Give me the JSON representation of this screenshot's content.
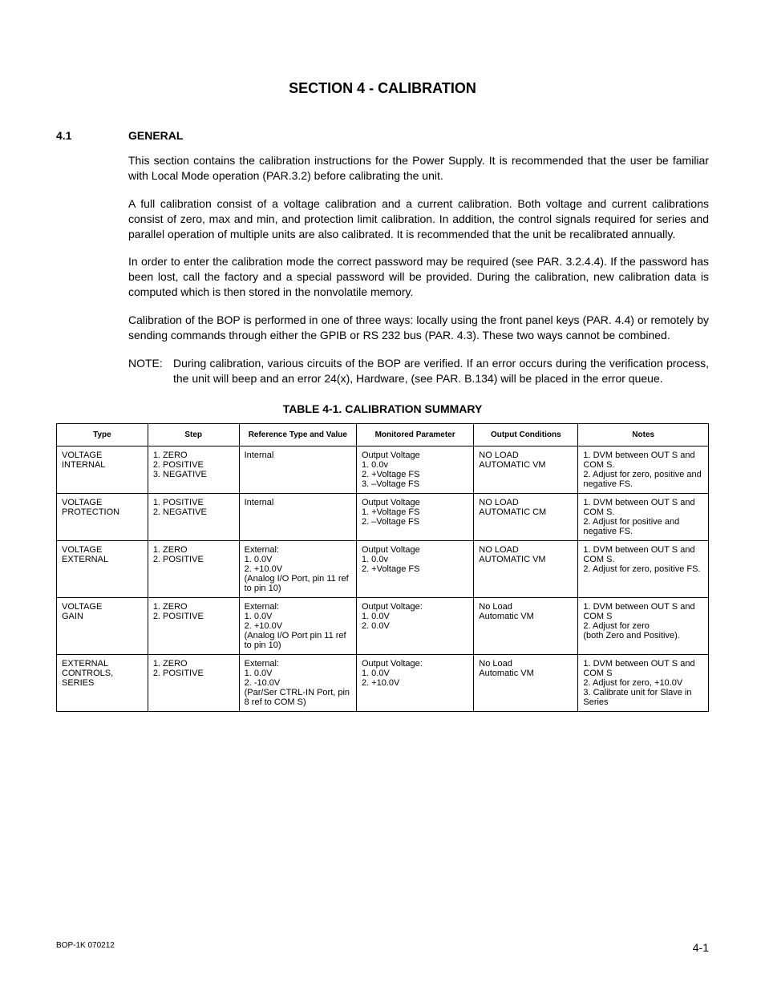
{
  "section_title": "SECTION 4 - CALIBRATION",
  "heading": {
    "num": "4.1",
    "text": "GENERAL"
  },
  "paragraphs": [
    "This section contains the calibration instructions for the Power Supply. It is recommended that the user be familiar with Local Mode operation (PAR.3.2) before calibrating the unit.",
    "A full calibration consist of a voltage calibration and a current calibration. Both voltage and current calibrations consist of zero, max and min, and protection limit calibration. In addition, the control signals required for series and parallel operation of multiple units are also calibrated. It is recommended that the unit be recalibrated annually.",
    "In order to enter the calibration mode the correct password may be required (see PAR. 3.2.4.4). If the password has been lost, call the factory and a special password will be provided. During the calibration, new calibration data is computed which is then stored in the nonvolatile memory.",
    "Calibration of the BOP is performed in one of three ways: locally using the front panel keys (PAR. 4.4) or remotely by sending commands through either the GPIB or RS 232 bus (PAR. 4.3). These two ways cannot be combined."
  ],
  "note": {
    "label": "NOTE:",
    "text": "During calibration, various circuits of the BOP are verified. If an error occurs during the verification process, the unit will beep and an error 24(x), Hardware, (see PAR. B.134) will be placed in the error queue."
  },
  "table": {
    "title": "TABLE 4-1.  CALIBRATION SUMMARY",
    "headers": [
      "Type",
      "Step",
      "Reference Type and Value",
      "Monitored Parameter",
      "Output Conditions",
      "Notes"
    ],
    "rows": [
      {
        "type": [
          "VOLTAGE",
          "INTERNAL"
        ],
        "step": [
          "1. ZERO",
          "2. POSITIVE",
          "3. NEGATIVE"
        ],
        "ref": [
          "Internal"
        ],
        "mon": [
          "Output Voltage",
          "1. 0.0v",
          "2. +Voltage FS",
          "3. –Voltage FS"
        ],
        "out": [
          "NO LOAD",
          "AUTOMATIC VM"
        ],
        "notes": [
          "1. DVM between OUT S and COM S.",
          "2. Adjust for zero, positive and negative FS."
        ]
      },
      {
        "type": [
          "VOLTAGE",
          "PROTECTION"
        ],
        "step": [
          "1. POSITIVE",
          "2. NEGATIVE"
        ],
        "ref": [
          "Internal"
        ],
        "mon": [
          "Output Voltage",
          "1. +Voltage FS",
          "2. –Voltage FS"
        ],
        "out": [
          "NO LOAD",
          "AUTOMATIC CM"
        ],
        "notes": [
          "1. DVM between OUT S and COM S.",
          "2. Adjust for positive and negative FS."
        ]
      },
      {
        "type": [
          "VOLTAGE",
          "EXTERNAL"
        ],
        "step": [
          "1. ZERO",
          "2. POSITIVE"
        ],
        "ref": [
          "External:",
          "1. 0.0V",
          "2. +10.0V",
          "(Analog I/O Port, pin 11 ref to pin 10)"
        ],
        "mon": [
          "Output Voltage",
          "1. 0.0v",
          "2. +Voltage FS"
        ],
        "out": [
          "NO LOAD",
          "AUTOMATIC VM"
        ],
        "notes": [
          "1. DVM between OUT S and COM S.",
          "2. Adjust for zero, positive FS."
        ]
      },
      {
        "type": [
          "VOLTAGE",
          "GAIN"
        ],
        "step": [
          "1. ZERO",
          "2. POSITIVE"
        ],
        "ref": [
          "External:",
          "1. 0.0V",
          "2. +10.0V",
          "(Analog I/O Port pin 11 ref to pin 10)"
        ],
        "mon": [
          "Output Voltage:",
          "1. 0.0V",
          "2. 0.0V"
        ],
        "out": [
          "No Load",
          "Automatic VM"
        ],
        "notes": [
          "1. DVM between OUT S and COM S",
          "2. Adjust for zero",
          "(both Zero and Positive)."
        ]
      },
      {
        "type": [
          "EXTERNAL",
          "CONTROLS,",
          "SERIES"
        ],
        "step": [
          "1. ZERO",
          "2. POSITIVE"
        ],
        "ref": [
          "External:",
          "1. 0.0V",
          "2. -10.0V",
          "(Par/Ser CTRL-IN Port, pin 8 ref to COM S)"
        ],
        "mon": [
          "Output Voltage:",
          "1. 0.0V",
          "2. +10.0V"
        ],
        "out": [
          "No Load",
          "Automatic VM"
        ],
        "notes": [
          "1. DVM between OUT S and COM S",
          "2. Adjust for zero, +10.0V",
          "3. Calibrate unit for Slave in Series"
        ]
      }
    ]
  },
  "footer": {
    "left": "BOP-1K 070212",
    "right": "4-1"
  }
}
